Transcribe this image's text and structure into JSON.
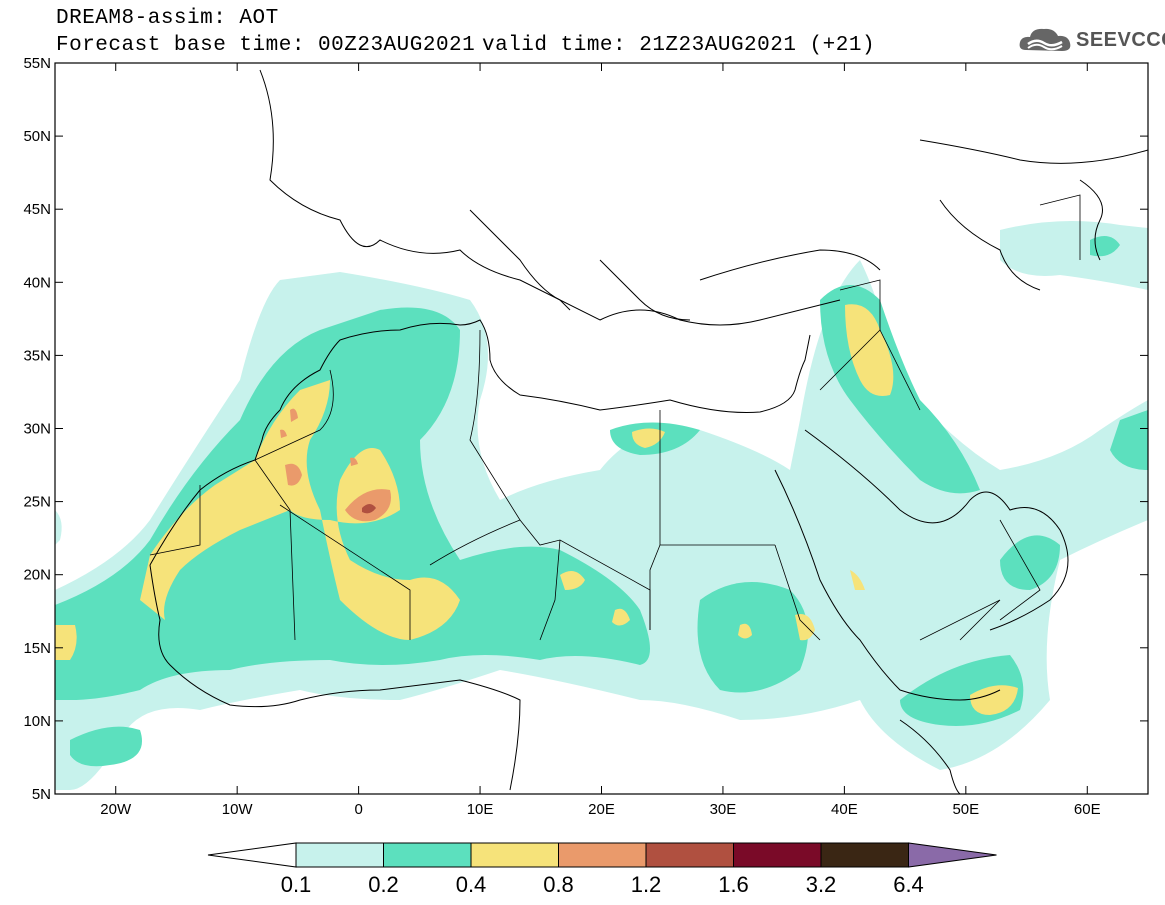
{
  "header": {
    "line1": "DREAM8-assim: AOT",
    "line2": "Forecast base time: 00Z23AUG2021",
    "valid": "valid time: 21Z23AUG2021 (+21)",
    "logo_text": "SEEVCCC",
    "logo_icon": "cloud-logo-icon"
  },
  "map": {
    "lat_labels": [
      "55N",
      "50N",
      "45N",
      "40N",
      "35N",
      "30N",
      "25N",
      "20N",
      "15N",
      "10N",
      "5N"
    ],
    "lon_labels": [
      "20W",
      "10W",
      "0",
      "10E",
      "20E",
      "30E",
      "40E",
      "50E",
      "60E"
    ],
    "lat_range": [
      5,
      55
    ],
    "lon_range": [
      -25,
      65
    ]
  },
  "colorbar": {
    "levels": [
      "0.1",
      "0.2",
      "0.4",
      "0.8",
      "1.2",
      "1.6",
      "3.2",
      "6.4"
    ],
    "colors": [
      "#ffffff",
      "#c7f2ec",
      "#5ce0be",
      "#f6e37a",
      "#ea9a6b",
      "#b05040",
      "#7a0a28",
      "#3a2614",
      "#8a6aa8"
    ]
  },
  "field_colors": {
    "c1": "#c7f2ec",
    "c2": "#5ce0be",
    "c3": "#f6e37a",
    "c4": "#ea9a6b",
    "c5": "#b05040"
  }
}
